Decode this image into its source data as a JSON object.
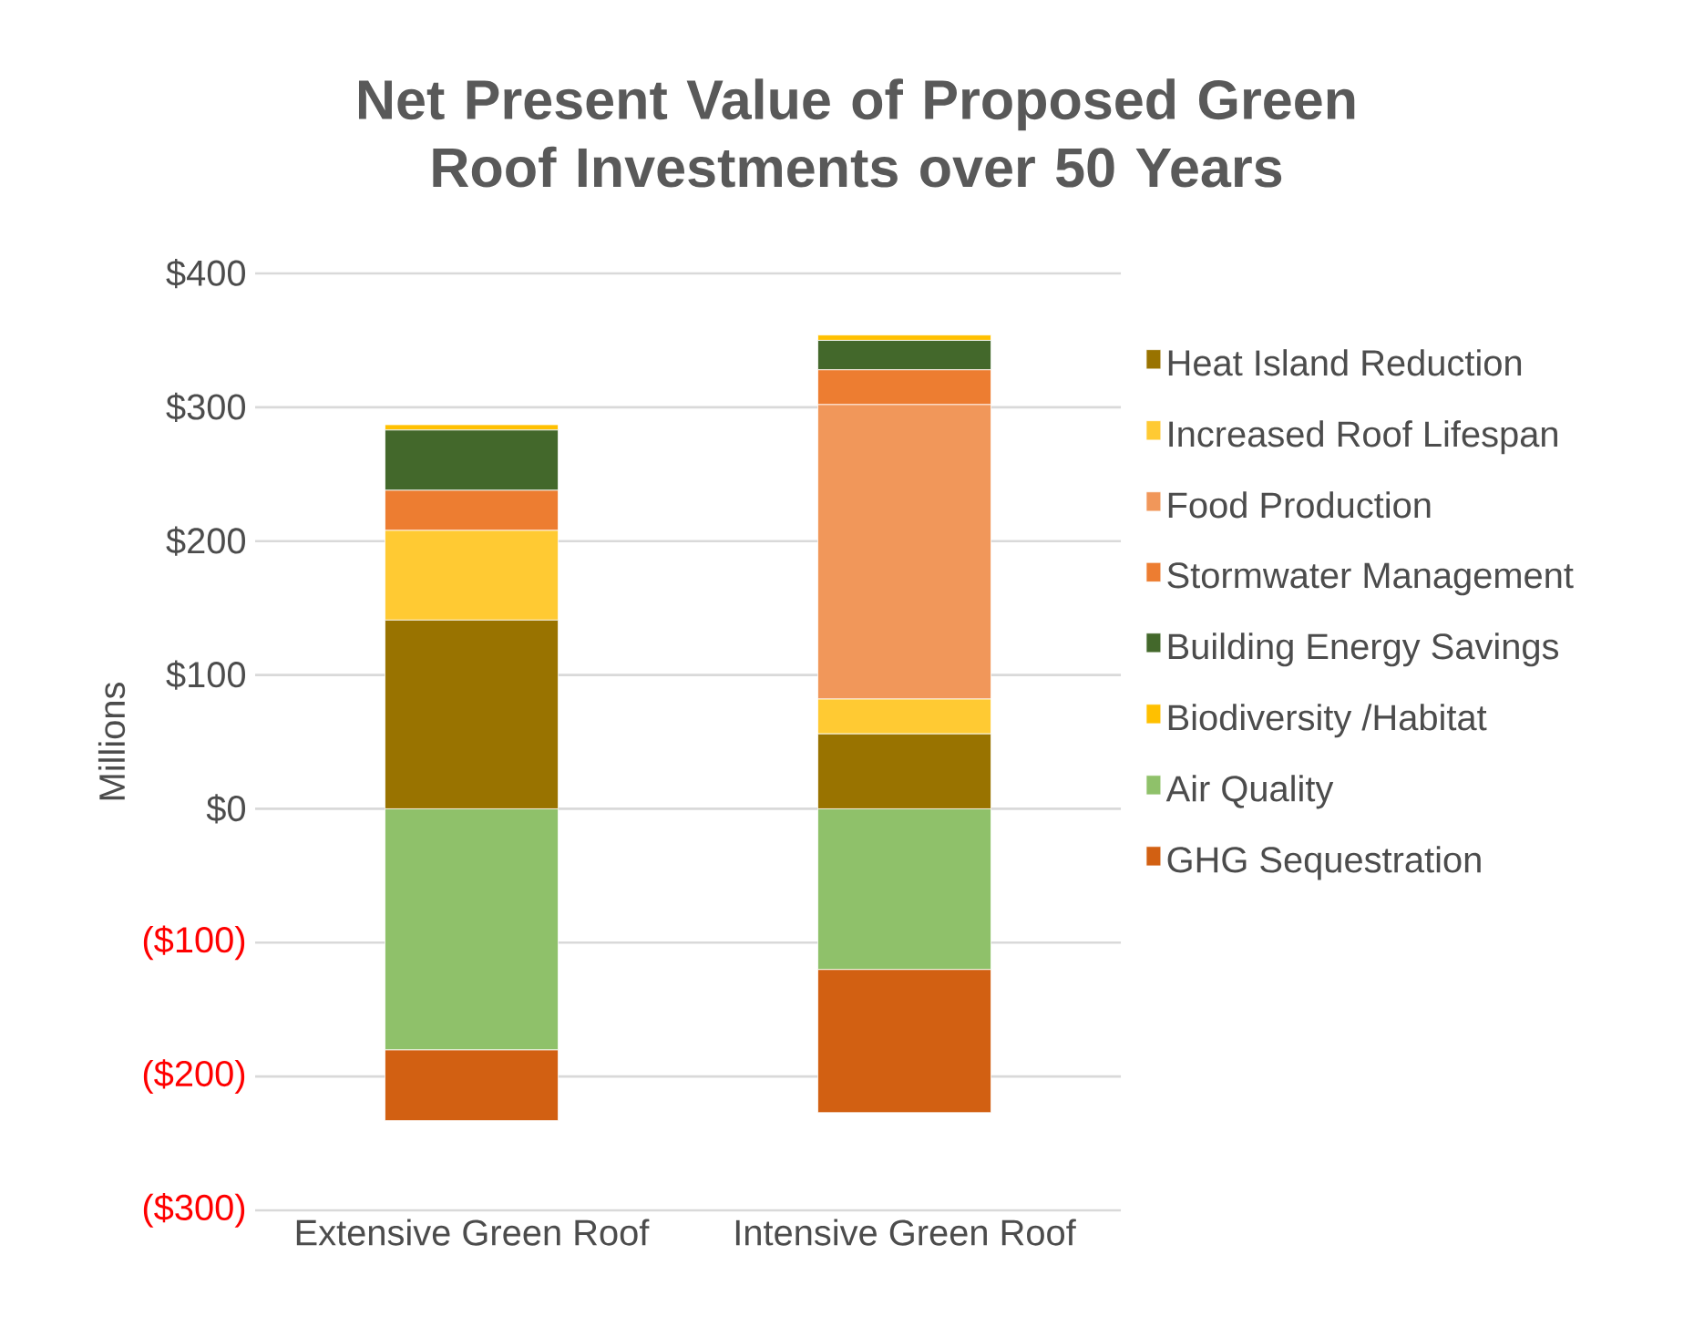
{
  "chart_data": {
    "type": "bar",
    "stacked": true,
    "title": "Net Present Value of Proposed Green Roof Investments over 50 Years",
    "ylabel": "Millions",
    "categories": [
      "Extensive Green Roof",
      "Intensive Green Roof"
    ],
    "series": [
      {
        "name": "Heat Island Reduction",
        "color": "#997300",
        "values": [
          141,
          56
        ]
      },
      {
        "name": "Increased Roof Lifespan",
        "color": "#ffca33",
        "values": [
          67,
          26
        ]
      },
      {
        "name": "Food Production",
        "color": "#f1975a",
        "values": [
          0,
          220
        ]
      },
      {
        "name": "Stormwater Management",
        "color": "#ed7d31",
        "values": [
          30,
          26
        ]
      },
      {
        "name": "Building Energy Savings",
        "color": "#43682b",
        "values": [
          45,
          22
        ]
      },
      {
        "name": "Biodiversity /Habitat",
        "color": "#ffc000",
        "values": [
          4,
          4
        ]
      },
      {
        "name": "Air Quality",
        "color": "#8fc16a",
        "values": [
          -180,
          -120
        ]
      },
      {
        "name": "GHG Sequestration",
        "color": "#d26012",
        "values": [
          -53,
          -107
        ]
      }
    ],
    "ylim": [
      -300,
      400
    ],
    "yticks": [
      {
        "value": -300,
        "label": "($300)"
      },
      {
        "value": -200,
        "label": "($200)"
      },
      {
        "value": -100,
        "label": "($100)"
      },
      {
        "value": 0,
        "label": "$0"
      },
      {
        "value": 100,
        "label": "$100"
      },
      {
        "value": 200,
        "label": "$200"
      },
      {
        "value": 300,
        "label": "$300"
      },
      {
        "value": 400,
        "label": "$400"
      }
    ],
    "grid": "y",
    "legend": "right"
  }
}
